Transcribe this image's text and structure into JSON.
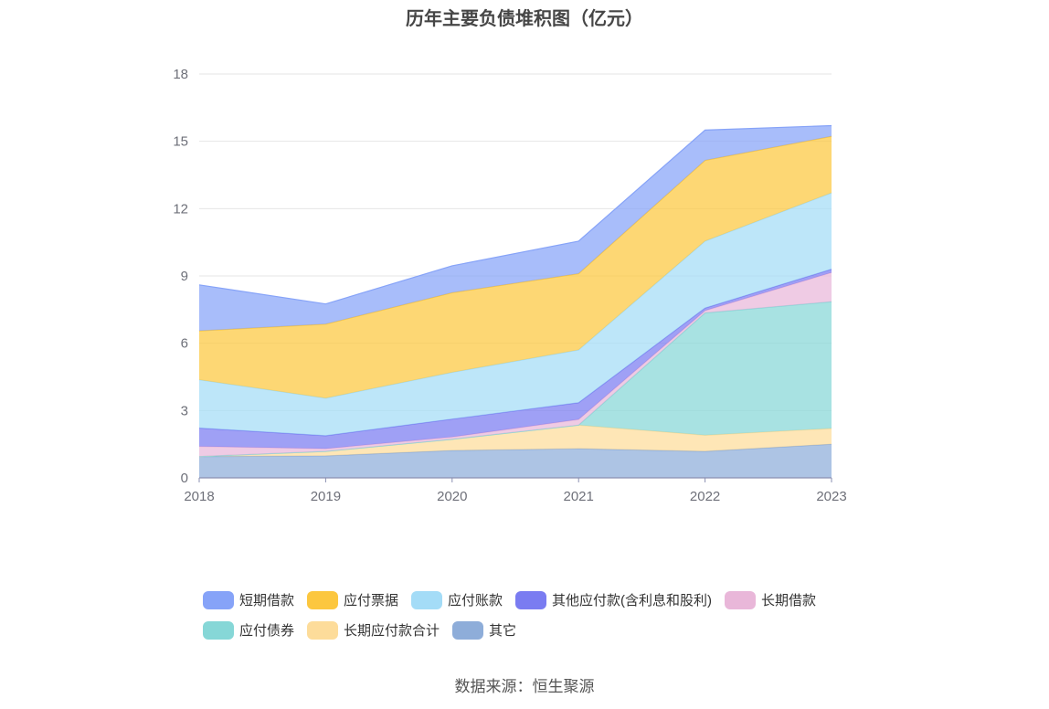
{
  "chart_data": {
    "type": "area",
    "title": "历年主要负债堆积图（亿元）",
    "categories": [
      "2018",
      "2019",
      "2020",
      "2021",
      "2022",
      "2023"
    ],
    "ylim": [
      0,
      18
    ],
    "yticks": [
      0,
      3,
      6,
      9,
      12,
      15,
      18
    ],
    "stacked": true,
    "grid": true,
    "legend_position": "bottom",
    "series": [
      {
        "name": "其它",
        "color": "#8eadd9",
        "values": [
          0.95,
          0.98,
          1.22,
          1.3,
          1.18,
          1.5
        ]
      },
      {
        "name": "长期应付款合计",
        "color": "#fddc9a",
        "values": [
          0.0,
          0.2,
          0.5,
          1.05,
          0.72,
          0.7
        ]
      },
      {
        "name": "应付债券",
        "color": "#86d7d7",
        "values": [
          0.0,
          0.0,
          0.0,
          0.0,
          5.45,
          5.65
        ]
      },
      {
        "name": "长期借款",
        "color": "#e9b7d9",
        "values": [
          0.45,
          0.12,
          0.1,
          0.25,
          0.1,
          1.3
        ]
      },
      {
        "name": "其他应付款(含利息和股利)",
        "color": "#7a7cf1",
        "values": [
          0.82,
          0.58,
          0.8,
          0.75,
          0.12,
          0.15
        ]
      },
      {
        "name": "应付账款",
        "color": "#a4dcf7",
        "values": [
          2.15,
          1.67,
          2.08,
          2.35,
          2.98,
          3.4
        ]
      },
      {
        "name": "应付票据",
        "color": "#fcc73f",
        "values": [
          2.18,
          3.3,
          3.55,
          3.4,
          3.6,
          2.52
        ]
      },
      {
        "name": "短期借款",
        "color": "#86a3f8",
        "values": [
          2.05,
          0.9,
          1.2,
          1.45,
          1.35,
          0.48
        ]
      }
    ]
  },
  "legend": {
    "row1": [
      "短期借款",
      "应付票据",
      "应付账款",
      "其他应付款(含利息和股利)",
      "长期借款"
    ],
    "row2": [
      "应付债券",
      "长期应付款合计",
      "其它"
    ]
  },
  "source": "数据来源：恒生聚源"
}
